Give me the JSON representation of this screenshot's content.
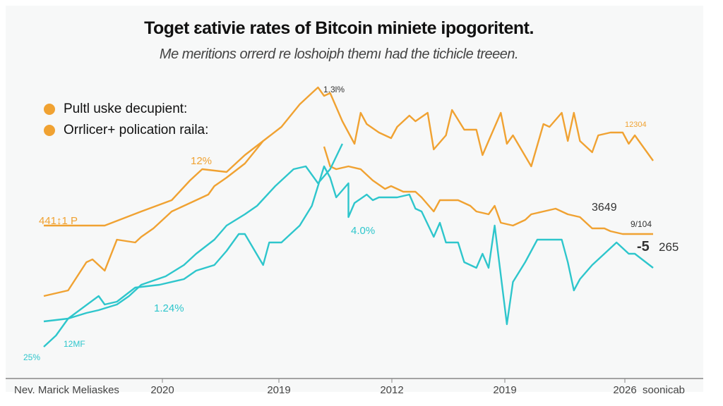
{
  "colors": {
    "orange": "#f0a232",
    "teal": "#2ec6cc",
    "axis": "#888888",
    "text": "#333333"
  },
  "chart_data": {
    "type": "line",
    "title": "Toget ɛativie rates of Bitcoin miniete ipogoritent.",
    "subtitle": "Me meritions orrerd re loshoiph themı had the tichicle treeen.",
    "legend": [
      "Pultl uske decupient:",
      "Orrlicer+ polication raila:"
    ],
    "legend_placement": "top-left",
    "grid": false,
    "x_tick_labels": [
      "Nev. Marick Meliaskes",
      "2020",
      "2019",
      "2012",
      "2019",
      "2026",
      "soonicab"
    ],
    "series": [
      {
        "color": "orange",
        "values": [
          [
            0,
            45
          ],
          [
            10,
            45
          ],
          [
            16,
            50
          ],
          [
            21,
            54
          ],
          [
            24,
            61
          ],
          [
            26,
            65
          ],
          [
            30,
            64
          ],
          [
            33,
            70
          ],
          [
            36,
            75
          ],
          [
            39,
            80
          ],
          [
            42,
            88
          ],
          [
            44,
            92
          ],
          [
            45,
            94
          ],
          [
            46,
            91
          ],
          [
            47,
            92
          ],
          [
            49,
            82
          ],
          [
            51,
            74
          ],
          [
            52,
            85
          ],
          [
            53,
            81
          ],
          [
            55,
            78
          ],
          [
            57,
            76
          ],
          [
            58,
            80
          ],
          [
            60,
            84
          ],
          [
            61,
            82
          ],
          [
            63,
            85
          ],
          [
            64,
            72
          ],
          [
            66,
            77
          ],
          [
            67,
            86
          ],
          [
            69,
            79
          ],
          [
            71,
            79
          ],
          [
            72,
            70
          ],
          [
            73,
            75
          ],
          [
            75,
            85
          ],
          [
            76,
            74
          ],
          [
            77,
            77
          ],
          [
            80,
            66
          ],
          [
            82,
            81
          ],
          [
            83,
            80
          ],
          [
            85,
            85
          ],
          [
            86,
            75
          ],
          [
            87,
            85
          ],
          [
            88,
            75
          ],
          [
            90,
            71
          ],
          [
            91,
            77
          ],
          [
            93,
            78
          ],
          [
            95,
            78
          ],
          [
            96,
            74
          ],
          [
            97,
            77
          ],
          [
            100,
            68
          ]
        ]
      },
      {
        "color": "orange",
        "values": [
          [
            0,
            20
          ],
          [
            2,
            21
          ],
          [
            4,
            22
          ],
          [
            7,
            32
          ],
          [
            8,
            33
          ],
          [
            10,
            29
          ],
          [
            12,
            40
          ],
          [
            15,
            39
          ],
          [
            16,
            41
          ],
          [
            18,
            44
          ],
          [
            21,
            50
          ],
          [
            23,
            52
          ],
          [
            25,
            54
          ],
          [
            27,
            56
          ],
          [
            28,
            59
          ],
          [
            30,
            62
          ],
          [
            33,
            67
          ],
          [
            36,
            75
          ],
          [
            null,
            null
          ],
          [
            46,
            73
          ],
          [
            47,
            66
          ],
          [
            48,
            65
          ],
          [
            50,
            66
          ],
          [
            52,
            65
          ],
          [
            54,
            61
          ],
          [
            56,
            58
          ],
          [
            57,
            59
          ],
          [
            59,
            57
          ],
          [
            61,
            57
          ],
          [
            62,
            55
          ],
          [
            64,
            50
          ],
          [
            65,
            54
          ],
          [
            66,
            54
          ],
          [
            68,
            54
          ],
          [
            70,
            52
          ],
          [
            71,
            50
          ],
          [
            73,
            49
          ],
          [
            74,
            52
          ],
          [
            75,
            46
          ],
          [
            77,
            45
          ],
          [
            79,
            47
          ],
          [
            80,
            49
          ],
          [
            82,
            50
          ],
          [
            84,
            51
          ],
          [
            86,
            49
          ],
          [
            88,
            48
          ],
          [
            90,
            44
          ],
          [
            92,
            44
          ],
          [
            93,
            43
          ],
          [
            95,
            42
          ],
          [
            97,
            42
          ],
          [
            100,
            42
          ]
        ]
      },
      {
        "color": "teal",
        "values": [
          [
            0,
            11
          ],
          [
            4,
            12
          ],
          [
            9,
            20
          ],
          [
            10,
            17
          ],
          [
            12,
            18
          ],
          [
            15,
            23
          ],
          [
            19,
            24
          ],
          [
            23,
            26
          ],
          [
            25,
            29
          ],
          [
            28,
            31
          ],
          [
            30,
            36
          ],
          [
            32,
            42
          ],
          [
            33,
            42
          ],
          [
            36,
            31
          ],
          [
            37,
            39
          ],
          [
            39,
            39
          ],
          [
            42,
            45
          ],
          [
            44,
            52
          ],
          [
            46,
            66
          ],
          [
            47,
            62
          ],
          [
            48,
            55
          ],
          [
            50,
            60
          ],
          [
            50,
            48
          ],
          [
            51,
            53
          ],
          [
            53,
            56
          ],
          [
            54,
            54
          ],
          [
            55,
            55
          ],
          [
            58,
            55
          ],
          [
            60,
            56
          ],
          [
            61,
            51
          ],
          [
            62,
            50
          ],
          [
            64,
            41
          ],
          [
            65,
            46
          ],
          [
            66,
            39
          ],
          [
            68,
            39
          ],
          [
            69,
            32
          ],
          [
            70,
            31
          ],
          [
            71,
            30
          ],
          [
            72,
            35
          ],
          [
            73,
            30
          ],
          [
            74,
            45
          ],
          [
            76,
            10
          ],
          [
            77,
            25
          ],
          [
            79,
            32
          ],
          [
            81,
            40
          ],
          [
            82,
            40
          ],
          [
            84,
            40
          ],
          [
            85,
            40
          ],
          [
            86,
            32
          ],
          [
            87,
            22
          ],
          [
            88,
            26
          ],
          [
            90,
            31
          ],
          [
            92,
            35
          ],
          [
            94,
            39
          ],
          [
            96,
            35
          ],
          [
            97,
            35
          ],
          [
            100,
            30
          ]
        ]
      },
      {
        "color": "teal",
        "values": [
          [
            0,
            2
          ],
          [
            2,
            6
          ],
          [
            4,
            12
          ],
          [
            7,
            14
          ],
          [
            9,
            15
          ],
          [
            12,
            17
          ],
          [
            14,
            20
          ],
          [
            16,
            24
          ],
          [
            20,
            27
          ],
          [
            23,
            31
          ],
          [
            25,
            35
          ],
          [
            28,
            40
          ],
          [
            30,
            45
          ],
          [
            33,
            49
          ],
          [
            35,
            52
          ],
          [
            38,
            59
          ],
          [
            41,
            65
          ],
          [
            43,
            66
          ],
          [
            45,
            60
          ],
          [
            47,
            65
          ],
          [
            49,
            74
          ]
        ]
      }
    ],
    "annotations": [
      {
        "text": "1.3l%",
        "color": "text"
      },
      {
        "text": "12304",
        "color": "orange"
      },
      {
        "text": "12%",
        "color": "orange"
      },
      {
        "text": "441↕1 P",
        "color": "orange"
      },
      {
        "text": "4.0%",
        "color": "teal"
      },
      {
        "text": "1.24%",
        "color": "teal"
      },
      {
        "text": "12MF",
        "color": "teal"
      },
      {
        "text": "25%",
        "color": "teal"
      },
      {
        "text": "3649",
        "color": "text"
      },
      {
        "text": "9/104",
        "color": "text"
      },
      {
        "text": "-5",
        "color": "text"
      },
      {
        "text": "265",
        "color": "text"
      }
    ]
  }
}
